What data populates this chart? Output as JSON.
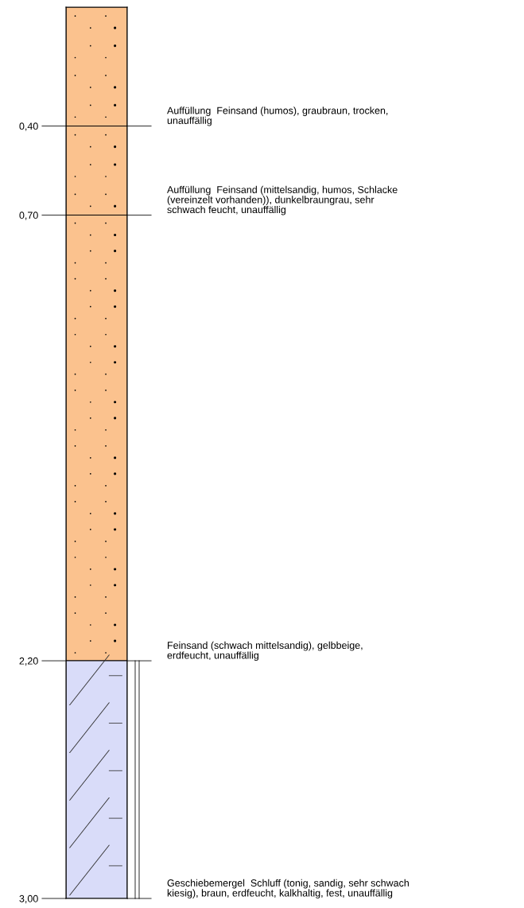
{
  "chart_data": {
    "type": "bar",
    "stacked": true,
    "categories": [
      null
    ],
    "series": [
      {
        "color": "#fbc28e",
        "values": [
          0.4
        ]
      },
      {
        "color": "#fbc28e",
        "values": [
          0.3
        ]
      },
      {
        "color": "#fbc28e",
        "values": [
          1.5
        ]
      },
      {
        "color": "#d9dcf9",
        "values": [
          0.8
        ]
      }
    ],
    "ylim": [
      3.0,
      0
    ],
    "yticks": [
      {
        "value": 0.4,
        "label": "0,40"
      },
      {
        "value": 0.7,
        "label": "0,70"
      },
      {
        "value": 2.2,
        "label": "2,20"
      },
      {
        "value": 3.0,
        "label": "3,00"
      }
    ],
    "tick_labels": "y",
    "annotations": [
      "Auffüllung  Feinsand (humos), graubraun, trocken,\nunauffällig",
      "Auffüllung  Feinsand (mittelsandig, humos, Schlacke\n(vereinzelt vorhanden)), dunkelbraungrau, sehr\nschwach feucht, unauffällig",
      "Feinsand (schwach mittelsandig), gelbbeige,\nerdfeucht, unauffällig",
      "Geschiebemergel  Schluff (tonig, sandig, sehr schwach\nkiesig), braun, erdfeucht, kalkhaltig, fest, unauffällig"
    ]
  }
}
